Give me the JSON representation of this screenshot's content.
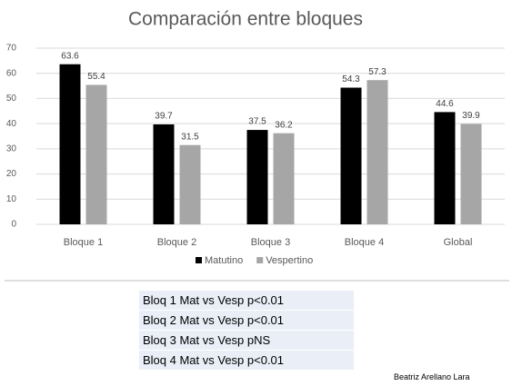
{
  "chart_data": {
    "type": "bar",
    "title": "Comparación entre bloques",
    "categories": [
      "Bloque 1",
      "Bloque 2",
      "Bloque 3",
      "Bloque 4",
      "Global"
    ],
    "series": [
      {
        "name": "Matutino",
        "color": "#000000",
        "values": [
          63.6,
          39.7,
          37.5,
          54.3,
          44.6
        ]
      },
      {
        "name": "Vespertino",
        "color": "#a6a6a6",
        "values": [
          55.4,
          31.5,
          36.2,
          57.3,
          39.9
        ]
      }
    ],
    "ylim": [
      0,
      70
    ],
    "yticks": [
      0,
      10,
      20,
      30,
      40,
      50,
      60,
      70
    ],
    "grid": true,
    "legend": "bottom"
  },
  "notes": [
    "Bloq 1 Mat vs Vesp p<0.01",
    "Bloq 2 Mat vs Vesp p<0.01",
    "Bloq 3 Mat vs Vesp pNS",
    "Bloq 4 Mat vs Vesp p<0.01"
  ],
  "author": "Beatriz Arellano Lara"
}
